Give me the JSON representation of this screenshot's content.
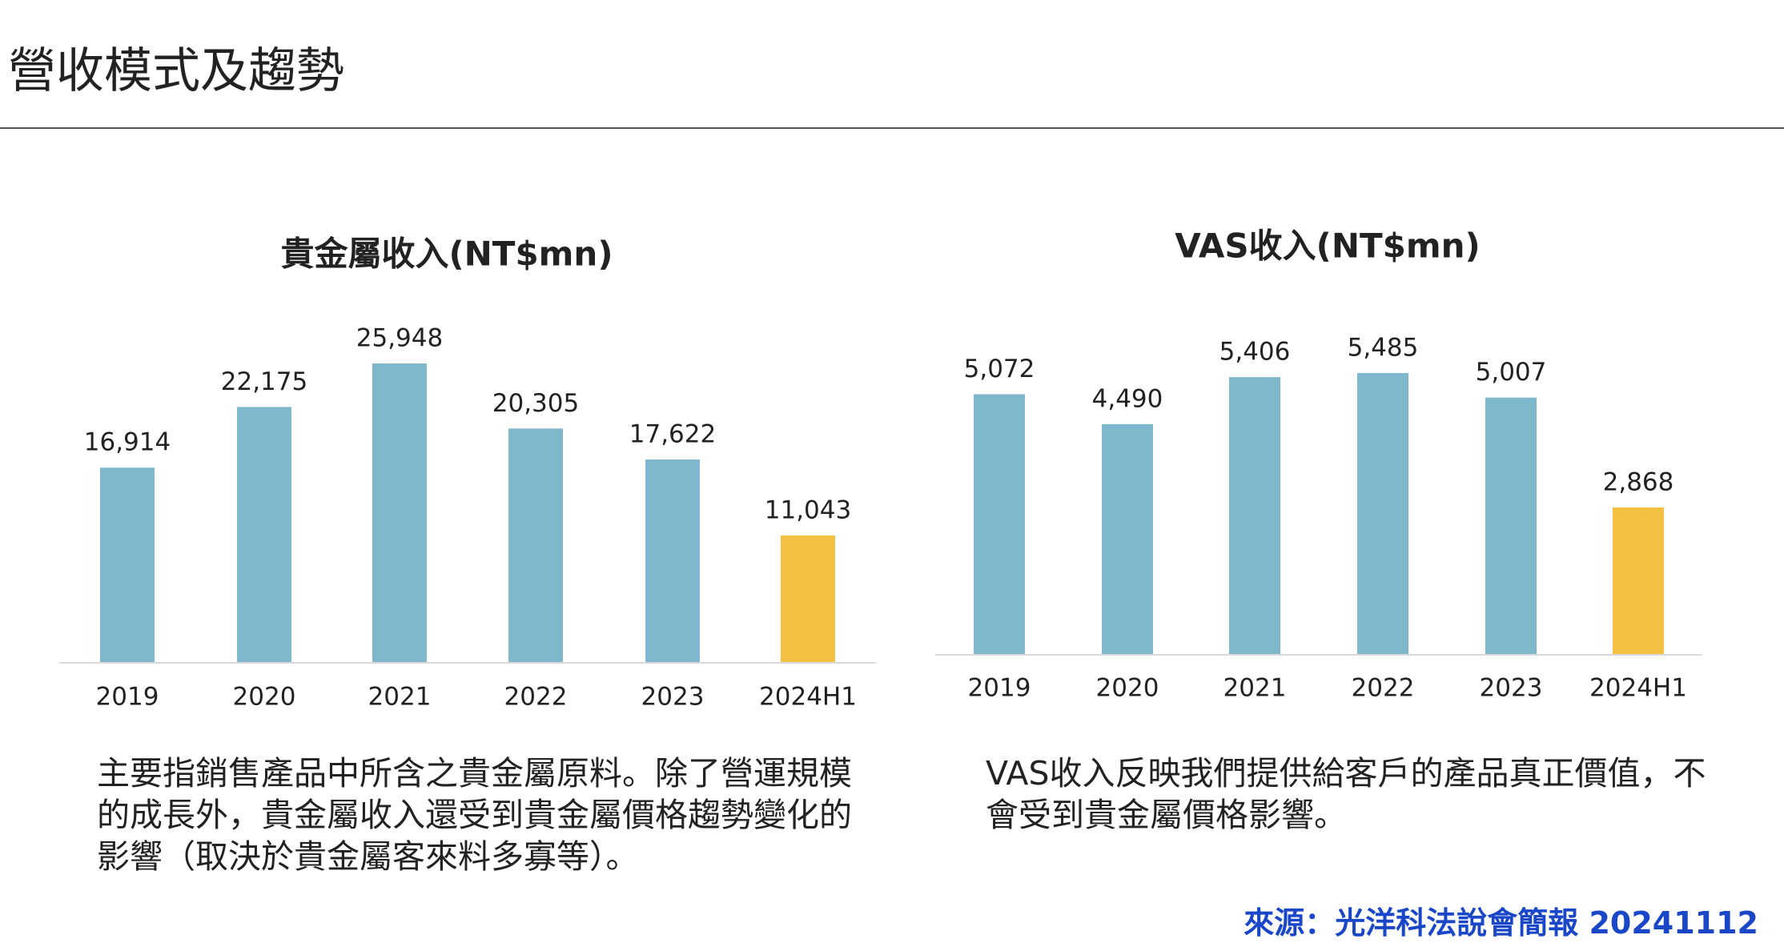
{
  "title": "營收模式及趨勢",
  "chart_data": [
    {
      "type": "bar",
      "title": "貴金屬收入(NT$mn)",
      "categories": [
        "2019",
        "2020",
        "2021",
        "2022",
        "2023",
        "2024H1"
      ],
      "values": [
        16914,
        22175,
        25948,
        20305,
        17622,
        11043
      ],
      "value_labels": [
        "16,914",
        "22,175",
        "25,948",
        "20,305",
        "17,622",
        "11,043"
      ],
      "colors": [
        "#7fb8cc",
        "#7fb8cc",
        "#7fb8cc",
        "#7fb8cc",
        "#7fb8cc",
        "#f4c142"
      ]
    },
    {
      "type": "bar",
      "title": "VAS收入(NT$mn)",
      "categories": [
        "2019",
        "2020",
        "2021",
        "2022",
        "2023",
        "2024H1"
      ],
      "values": [
        5072,
        4490,
        5406,
        5485,
        5007,
        2868
      ],
      "value_labels": [
        "5,072",
        "4,490",
        "5,406",
        "5,485",
        "5,007",
        "2,868"
      ],
      "colors": [
        "#7fb8cc",
        "#7fb8cc",
        "#7fb8cc",
        "#7fb8cc",
        "#7fb8cc",
        "#f4c142"
      ]
    }
  ],
  "notes": [
    "主要指銷售產品中所含之貴金屬原料。除了營運規模的成長外，貴金屬收入還受到貴金屬價格趨勢變化的影響（取決於貴金屬客來料多寡等）。",
    "VAS收入反映我們提供給客戶的產品真正價值，不會受到貴金屬價格影響。"
  ],
  "source": "來源：光洋科法說會簡報 20241112"
}
